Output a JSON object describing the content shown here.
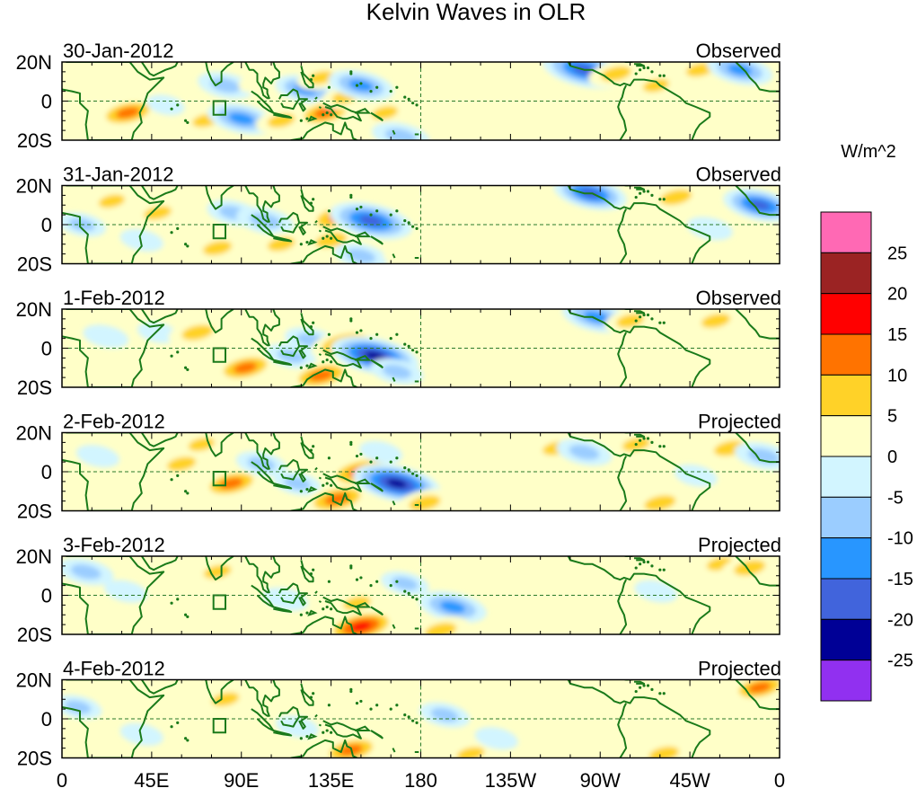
{
  "chart_data": {
    "type": "heatmap",
    "title": "Kelvin Waves in OLR",
    "colorbar": {
      "unit_label": "W/m^2",
      "tick_labels": [
        "25",
        "20",
        "15",
        "10",
        "5",
        "0",
        "-5",
        "-10",
        "-15",
        "-20",
        "-25"
      ],
      "colors": [
        "#ff69b4",
        "#9b2323",
        "#ff0000",
        "#ff7300",
        "#ffd228",
        "#ffffc8",
        "#d2f5ff",
        "#9bcdff",
        "#2896ff",
        "#4164dc",
        "#000096",
        "#9130f0"
      ]
    },
    "x_axis": {
      "range_deg_east": [
        0,
        360
      ],
      "ticks": [
        {
          "lon": 0,
          "label": "0"
        },
        {
          "lon": 45,
          "label": "45E"
        },
        {
          "lon": 90,
          "label": "90E"
        },
        {
          "lon": 135,
          "label": "135E"
        },
        {
          "lon": 180,
          "label": "180"
        },
        {
          "lon": 225,
          "label": "135W"
        },
        {
          "lon": 270,
          "label": "90W"
        },
        {
          "lon": 315,
          "label": "45W"
        },
        {
          "lon": 360,
          "label": "0"
        }
      ]
    },
    "y_axis": {
      "range_deg": [
        -20,
        20
      ],
      "ticks": [
        {
          "lat": 20,
          "label": "20N"
        },
        {
          "lat": 0,
          "label": "0"
        },
        {
          "lat": -20,
          "label": "20S"
        }
      ]
    },
    "panels": [
      {
        "date": "30-Jan-2012",
        "status": "Observed",
        "anomalies": [
          {
            "lon": 12,
            "lat": 8,
            "value": 7
          },
          {
            "lon": 28,
            "lat": 6,
            "value": 6
          },
          {
            "lon": 20,
            "lat": -8,
            "value": 6
          },
          {
            "lon": 33,
            "lat": -6,
            "value": 14
          },
          {
            "lon": 42,
            "lat": 10,
            "value": 6
          },
          {
            "lon": 52,
            "lat": -2,
            "value": -4
          },
          {
            "lon": 72,
            "lat": -10,
            "value": 8
          },
          {
            "lon": 82,
            "lat": 8,
            "value": -11
          },
          {
            "lon": 90,
            "lat": -9,
            "value": -16
          },
          {
            "lon": 100,
            "lat": 10,
            "value": 7
          },
          {
            "lon": 110,
            "lat": -10,
            "value": 9
          },
          {
            "lon": 122,
            "lat": 6,
            "value": -13
          },
          {
            "lon": 130,
            "lat": 12,
            "value": 8
          },
          {
            "lon": 132,
            "lat": -6,
            "value": 13
          },
          {
            "lon": 142,
            "lat": 2,
            "value": 8
          },
          {
            "lon": 150,
            "lat": 8,
            "value": -15
          },
          {
            "lon": 162,
            "lat": -6,
            "value": 8
          },
          {
            "lon": 170,
            "lat": -18,
            "value": -12
          },
          {
            "lon": 195,
            "lat": 12,
            "value": 5
          },
          {
            "lon": 215,
            "lat": -4,
            "value": 6
          },
          {
            "lon": 240,
            "lat": 14,
            "value": 5
          },
          {
            "lon": 262,
            "lat": 16,
            "value": -22
          },
          {
            "lon": 278,
            "lat": 14,
            "value": 11
          },
          {
            "lon": 270,
            "lat": -8,
            "value": 5
          },
          {
            "lon": 298,
            "lat": 8,
            "value": 8
          },
          {
            "lon": 320,
            "lat": 16,
            "value": 9
          },
          {
            "lon": 340,
            "lat": 16,
            "value": -15
          },
          {
            "lon": 352,
            "lat": 2,
            "value": 6
          }
        ]
      },
      {
        "date": "31-Jan-2012",
        "status": "Observed",
        "anomalies": [
          {
            "lon": 10,
            "lat": 0,
            "value": -8
          },
          {
            "lon": 25,
            "lat": 12,
            "value": 8
          },
          {
            "lon": 40,
            "lat": -8,
            "value": -6
          },
          {
            "lon": 48,
            "lat": 6,
            "value": 9
          },
          {
            "lon": 62,
            "lat": -10,
            "value": 7
          },
          {
            "lon": 78,
            "lat": -12,
            "value": 10
          },
          {
            "lon": 86,
            "lat": 6,
            "value": -10
          },
          {
            "lon": 102,
            "lat": 2,
            "value": -12
          },
          {
            "lon": 110,
            "lat": -10,
            "value": 9
          },
          {
            "lon": 128,
            "lat": 10,
            "value": 7
          },
          {
            "lon": 140,
            "lat": 4,
            "value": 17
          },
          {
            "lon": 135,
            "lat": -8,
            "value": 12
          },
          {
            "lon": 155,
            "lat": 2,
            "value": -22
          },
          {
            "lon": 150,
            "lat": -16,
            "value": -10
          },
          {
            "lon": 172,
            "lat": -14,
            "value": 6
          },
          {
            "lon": 210,
            "lat": 6,
            "value": 5
          },
          {
            "lon": 235,
            "lat": 10,
            "value": 5
          },
          {
            "lon": 265,
            "lat": 16,
            "value": -18
          },
          {
            "lon": 290,
            "lat": -4,
            "value": 5
          },
          {
            "lon": 308,
            "lat": 14,
            "value": 12
          },
          {
            "lon": 325,
            "lat": -2,
            "value": -7
          },
          {
            "lon": 350,
            "lat": 10,
            "value": -18
          }
        ]
      },
      {
        "date": "1-Feb-2012",
        "status": "Observed",
        "anomalies": [
          {
            "lon": 22,
            "lat": 6,
            "value": -7
          },
          {
            "lon": 30,
            "lat": -8,
            "value": 7
          },
          {
            "lon": 48,
            "lat": 8,
            "value": -5
          },
          {
            "lon": 68,
            "lat": 8,
            "value": 12
          },
          {
            "lon": 78,
            "lat": -6,
            "value": 6
          },
          {
            "lon": 92,
            "lat": -10,
            "value": 14
          },
          {
            "lon": 104,
            "lat": 6,
            "value": 7
          },
          {
            "lon": 115,
            "lat": -4,
            "value": -9
          },
          {
            "lon": 125,
            "lat": 4,
            "value": -10
          },
          {
            "lon": 130,
            "lat": -14,
            "value": 15
          },
          {
            "lon": 142,
            "lat": 2,
            "value": 16
          },
          {
            "lon": 157,
            "lat": -4,
            "value": -24
          },
          {
            "lon": 168,
            "lat": -12,
            "value": -10
          },
          {
            "lon": 200,
            "lat": -6,
            "value": 4
          },
          {
            "lon": 238,
            "lat": 8,
            "value": 6
          },
          {
            "lon": 268,
            "lat": 16,
            "value": -16
          },
          {
            "lon": 285,
            "lat": 14,
            "value": 9
          },
          {
            "lon": 300,
            "lat": -6,
            "value": 6
          },
          {
            "lon": 328,
            "lat": 14,
            "value": 10
          },
          {
            "lon": 352,
            "lat": 0,
            "value": 7
          }
        ]
      },
      {
        "date": "2-Feb-2012",
        "status": "Projected",
        "anomalies": [
          {
            "lon": 18,
            "lat": 8,
            "value": -6
          },
          {
            "lon": 28,
            "lat": -6,
            "value": 5
          },
          {
            "lon": 60,
            "lat": 4,
            "value": 10
          },
          {
            "lon": 70,
            "lat": 14,
            "value": 8
          },
          {
            "lon": 85,
            "lat": -6,
            "value": 14
          },
          {
            "lon": 100,
            "lat": 4,
            "value": -9
          },
          {
            "lon": 118,
            "lat": -6,
            "value": -8
          },
          {
            "lon": 138,
            "lat": -14,
            "value": 16
          },
          {
            "lon": 150,
            "lat": 0,
            "value": 17
          },
          {
            "lon": 168,
            "lat": -6,
            "value": -24
          },
          {
            "lon": 160,
            "lat": 10,
            "value": -6
          },
          {
            "lon": 182,
            "lat": -16,
            "value": 12
          },
          {
            "lon": 215,
            "lat": 10,
            "value": 5
          },
          {
            "lon": 248,
            "lat": 12,
            "value": 9
          },
          {
            "lon": 262,
            "lat": 10,
            "value": -11
          },
          {
            "lon": 288,
            "lat": 14,
            "value": 9
          },
          {
            "lon": 300,
            "lat": -16,
            "value": 12
          },
          {
            "lon": 318,
            "lat": -2,
            "value": -6
          },
          {
            "lon": 335,
            "lat": 12,
            "value": 12
          },
          {
            "lon": 352,
            "lat": 8,
            "value": -12
          }
        ]
      },
      {
        "date": "3-Feb-2012",
        "status": "Projected",
        "anomalies": [
          {
            "lon": 12,
            "lat": 12,
            "value": -11
          },
          {
            "lon": 32,
            "lat": 2,
            "value": -6
          },
          {
            "lon": 52,
            "lat": -8,
            "value": 5
          },
          {
            "lon": 78,
            "lat": 12,
            "value": 9
          },
          {
            "lon": 92,
            "lat": 6,
            "value": 6
          },
          {
            "lon": 112,
            "lat": -2,
            "value": -7
          },
          {
            "lon": 130,
            "lat": 8,
            "value": 7
          },
          {
            "lon": 148,
            "lat": -4,
            "value": 9
          },
          {
            "lon": 150,
            "lat": -16,
            "value": 18
          },
          {
            "lon": 172,
            "lat": 6,
            "value": -8
          },
          {
            "lon": 196,
            "lat": -6,
            "value": -16
          },
          {
            "lon": 190,
            "lat": -18,
            "value": 12
          },
          {
            "lon": 235,
            "lat": 6,
            "value": 5
          },
          {
            "lon": 260,
            "lat": -6,
            "value": 6
          },
          {
            "lon": 282,
            "lat": 14,
            "value": 7
          },
          {
            "lon": 298,
            "lat": 2,
            "value": -6
          },
          {
            "lon": 330,
            "lat": 16,
            "value": 8
          },
          {
            "lon": 345,
            "lat": 14,
            "value": 12
          }
        ]
      },
      {
        "date": "4-Feb-2012",
        "status": "Projected",
        "anomalies": [
          {
            "lon": 8,
            "lat": 6,
            "value": -8
          },
          {
            "lon": 28,
            "lat": 10,
            "value": 5
          },
          {
            "lon": 40,
            "lat": -8,
            "value": -6
          },
          {
            "lon": 82,
            "lat": 10,
            "value": 9
          },
          {
            "lon": 94,
            "lat": -6,
            "value": 6
          },
          {
            "lon": 118,
            "lat": -4,
            "value": -6
          },
          {
            "lon": 145,
            "lat": -16,
            "value": 14
          },
          {
            "lon": 152,
            "lat": 4,
            "value": 6
          },
          {
            "lon": 172,
            "lat": 8,
            "value": 5
          },
          {
            "lon": 192,
            "lat": 2,
            "value": -9
          },
          {
            "lon": 205,
            "lat": -18,
            "value": 9
          },
          {
            "lon": 218,
            "lat": -10,
            "value": -6
          },
          {
            "lon": 242,
            "lat": 6,
            "value": 5
          },
          {
            "lon": 268,
            "lat": -10,
            "value": 6
          },
          {
            "lon": 292,
            "lat": 12,
            "value": 7
          },
          {
            "lon": 302,
            "lat": -18,
            "value": 11
          },
          {
            "lon": 326,
            "lat": 8,
            "value": 6
          },
          {
            "lon": 350,
            "lat": 16,
            "value": 13
          }
        ]
      }
    ]
  }
}
